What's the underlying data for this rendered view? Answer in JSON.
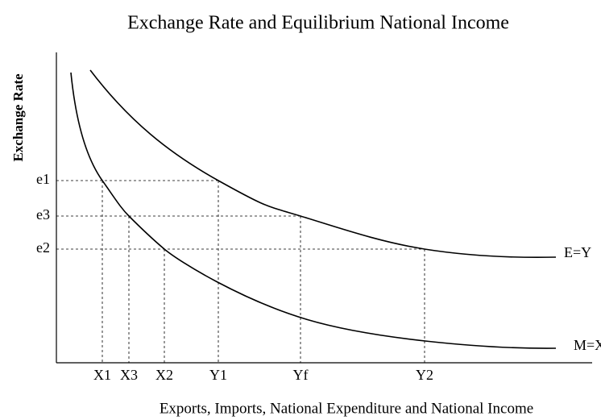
{
  "title": "Exchange Rate and Equilibrium National Income",
  "y_axis": {
    "label": "Exchange Rate",
    "ticks": [
      "e1",
      "e3",
      "e2"
    ]
  },
  "x_axis": {
    "label": "Exports, Imports, National Expenditure and National Income",
    "ticks": [
      "X1",
      "X3",
      "X2",
      "Y1",
      "Yf",
      "Y2"
    ]
  },
  "curves": [
    {
      "label": "E=Y"
    },
    {
      "label": "M=X"
    }
  ]
}
